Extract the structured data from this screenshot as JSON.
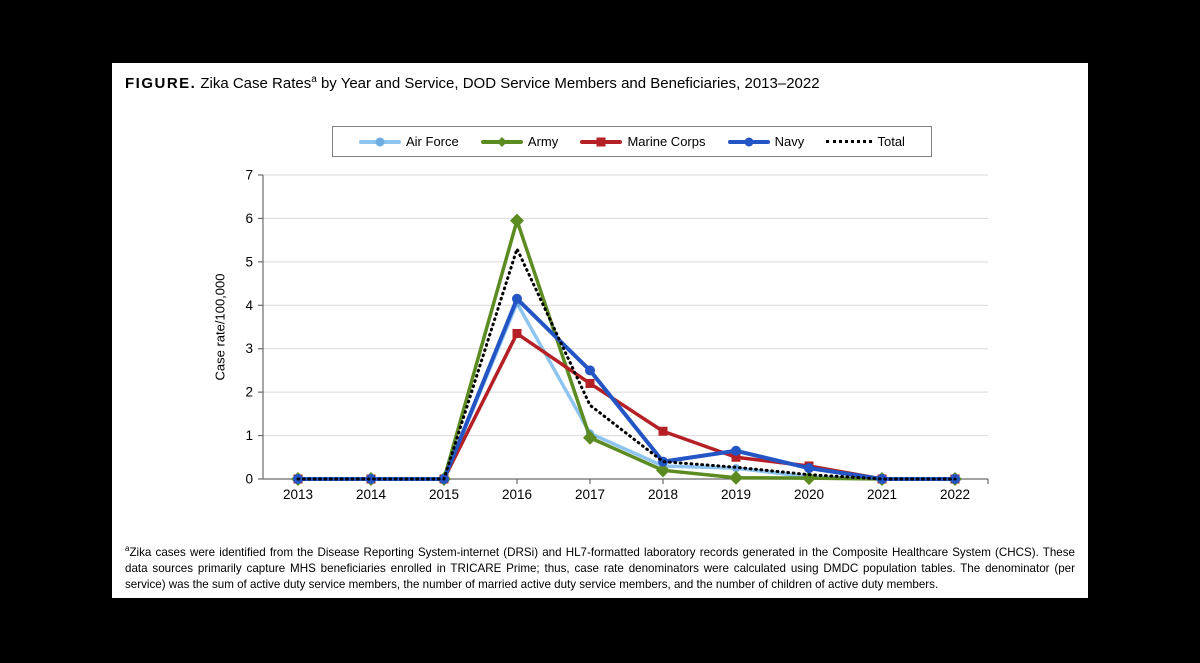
{
  "figure": {
    "title_prefix": "FIGURE.",
    "title_main": "Zika Case Rates",
    "title_superscript": "a",
    "title_rest": " by Year and Service, DOD Service Members and Beneficiaries, 2013–2022",
    "footnote_superscript": "a",
    "footnote": "Zika cases were identified from the Disease Reporting System-internet (DRSi) and HL7-formatted laboratory records generated in the Composite Healthcare System (CHCS). These data sources primarily capture MHS beneficiaries enrolled in TRICARE Prime; thus, case rate denominators were calculated using DMDC population tables. The denominator (per service) was the sum of active duty service members, the number of married active duty service members, and the number of children of active duty members."
  },
  "chart_data": {
    "type": "line",
    "title": "Zika Case Rates by Year and Service, DOD Service Members and Beneficiaries, 2013–2022",
    "xlabel": "",
    "ylabel": "Case rate/100,000",
    "ylim": [
      0,
      7
    ],
    "yticks": [
      0,
      1,
      2,
      3,
      4,
      5,
      6,
      7
    ],
    "grid": true,
    "legend_position": "top",
    "categories": [
      "2013",
      "2014",
      "2015",
      "2016",
      "2017",
      "2018",
      "2019",
      "2020",
      "2021",
      "2022"
    ],
    "series": [
      {
        "name": "Air Force",
        "color": "#8EC5F0",
        "marker": "circle",
        "marker_color": "#6FACE0",
        "marker_size": 4,
        "line_style": "solid",
        "line_width": 3.5,
        "values": [
          0,
          0,
          0,
          4.05,
          1.05,
          0.3,
          0.25,
          0.05,
          0,
          0
        ]
      },
      {
        "name": "Army",
        "color": "#5C8B22",
        "marker": "diamond",
        "marker_color": "#5C8B22",
        "marker_size": 7,
        "line_style": "solid",
        "line_width": 3.5,
        "values": [
          0,
          0,
          0,
          5.95,
          0.95,
          0.2,
          0.03,
          0.02,
          0,
          0
        ]
      },
      {
        "name": "Marine Corps",
        "color": "#B42025",
        "marker": "square",
        "marker_color": "#B42025",
        "marker_size": 4.5,
        "line_style": "solid",
        "line_width": 3.5,
        "values": [
          0,
          0,
          0,
          3.35,
          2.2,
          1.1,
          0.5,
          0.3,
          0,
          0
        ]
      },
      {
        "name": "Navy",
        "color": "#2455C5",
        "marker": "circle",
        "marker_color": "#2455C5",
        "marker_size": 5,
        "line_style": "solid",
        "line_width": 4,
        "values": [
          0,
          0,
          0,
          4.15,
          2.5,
          0.4,
          0.65,
          0.25,
          0,
          0
        ]
      },
      {
        "name": "Total",
        "color": "#000000",
        "marker": "none",
        "marker_color": "#000000",
        "marker_size": 0,
        "line_style": "dotted",
        "line_width": 3,
        "values": [
          0,
          0,
          0,
          5.3,
          1.7,
          0.4,
          0.27,
          0.1,
          0,
          0
        ]
      }
    ],
    "colors": {
      "gridline": "#D9D9D9",
      "axis": "#6B6B6B",
      "text": "#000000",
      "figure_bg": "#FFFFFF",
      "page_bg": "#000000"
    }
  }
}
